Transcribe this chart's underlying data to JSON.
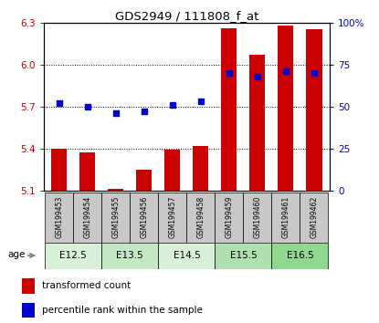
{
  "title": "GDS2949 / 111808_f_at",
  "samples": [
    "GSM199453",
    "GSM199454",
    "GSM199455",
    "GSM199456",
    "GSM199457",
    "GSM199458",
    "GSM199459",
    "GSM199460",
    "GSM199461",
    "GSM199462"
  ],
  "transformed_count": [
    5.4,
    5.37,
    5.11,
    5.25,
    5.39,
    5.42,
    6.26,
    6.07,
    6.28,
    6.25
  ],
  "percentile_rank": [
    52,
    50,
    46,
    47,
    51,
    53,
    70,
    68,
    71,
    70
  ],
  "bar_bottom": 5.1,
  "ylim_left": [
    5.1,
    6.3
  ],
  "ylim_right": [
    0,
    100
  ],
  "yticks_left": [
    5.1,
    5.4,
    5.7,
    6.0,
    6.3
  ],
  "yticks_right": [
    0,
    25,
    50,
    75,
    100
  ],
  "age_groups": [
    {
      "label": "E12.5",
      "start": 0,
      "end": 2,
      "color": "#d8f0d8"
    },
    {
      "label": "E13.5",
      "start": 2,
      "end": 4,
      "color": "#c4e8c4"
    },
    {
      "label": "E14.5",
      "start": 4,
      "end": 6,
      "color": "#d8f0d8"
    },
    {
      "label": "E15.5",
      "start": 6,
      "end": 8,
      "color": "#b0e0b0"
    },
    {
      "label": "E16.5",
      "start": 8,
      "end": 10,
      "color": "#90d890"
    }
  ],
  "bar_color": "#cc0000",
  "dot_color": "#0000cc",
  "grid_color": "#000000",
  "left_tick_color": "#cc0000",
  "right_tick_color": "#0000cc",
  "sample_box_color": "#c8c8c8",
  "bar_width": 0.55,
  "dot_size": 22,
  "legend_items": [
    "transformed count",
    "percentile rank within the sample"
  ]
}
